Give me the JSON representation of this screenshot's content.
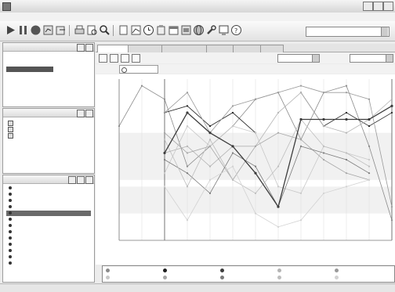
{
  "window": {
    "title": ""
  },
  "menubar": {
    "items": [
      "",
      "",
      "",
      "",
      "",
      "",
      "",
      "",
      ""
    ]
  },
  "toolbar": {
    "project_label": "",
    "project_value": ""
  },
  "websites_pane": {
    "title": "",
    "items": []
  },
  "search_engines_pane": {
    "title": "",
    "items": [
      "",
      "",
      ""
    ]
  },
  "sites_pane": {
    "title": "",
    "items": [
      "",
      "",
      "",
      "",
      "",
      "",
      "",
      "",
      "",
      "",
      "",
      "",
      ""
    ],
    "selected_index": 4
  },
  "tabs": [
    "",
    "",
    "",
    "",
    "",
    ""
  ],
  "position_ranges": {
    "label": "",
    "value": ""
  },
  "date_range": {
    "label": "",
    "value": ""
  },
  "filter": {
    "label": "",
    "value": ""
  },
  "chart_data": {
    "type": "line",
    "title": "",
    "xlabel": "",
    "ylabel": "",
    "x": [
      "",
      "",
      "",
      "",
      "",
      "",
      "",
      "",
      "",
      "",
      "",
      "",
      ""
    ],
    "y_ticks": [
      "",
      "",
      "",
      "",
      "",
      "",
      "",
      "",
      "",
      "",
      "",
      "",
      ""
    ],
    "ylim": [
      1,
      25
    ],
    "y_inverted": true,
    "highlight_series": 2,
    "series": [
      {
        "name": "",
        "color": "#8a8a8a",
        "values": [
          8,
          2,
          4,
          14,
          11,
          8,
          4,
          3,
          10,
          3,
          2,
          11,
          22
        ]
      },
      {
        "name": "",
        "color": "#1f1f1f",
        "values": [
          null,
          null,
          6,
          5,
          8,
          6,
          9,
          null,
          3,
          8,
          6,
          8,
          6
        ]
      },
      {
        "name": "",
        "color": "#3c3c3c",
        "values": [
          null,
          null,
          12,
          6,
          9,
          11,
          15,
          20,
          7,
          7,
          7,
          7,
          5
        ]
      },
      {
        "name": "",
        "color": "#b4b4b4",
        "values": [
          null,
          null,
          12,
          11,
          14,
          11,
          11,
          6,
          3,
          8,
          9,
          7,
          4
        ]
      },
      {
        "name": "",
        "color": "#9a9a9a",
        "values": [
          null,
          null,
          6,
          3,
          9,
          5,
          4,
          3,
          2,
          3,
          3,
          4,
          20
        ]
      },
      {
        "name": "",
        "color": "#c8c8c8",
        "values": [
          null,
          null,
          15,
          8,
          11,
          8,
          9,
          17,
          18,
          11,
          12,
          13,
          null
        ]
      },
      {
        "name": "",
        "color": "#a6a6a6",
        "values": [
          null,
          null,
          9,
          12,
          11,
          16,
          11,
          9,
          10,
          13,
          15,
          16,
          null
        ]
      },
      {
        "name": "",
        "color": "#7a7a7a",
        "values": [
          null,
          null,
          13,
          15,
          18,
          12,
          14,
          20,
          11,
          12,
          13,
          15,
          null
        ]
      },
      {
        "name": "",
        "color": "#bdbdbd",
        "values": [
          null,
          null,
          10,
          17,
          10,
          16,
          18,
          14,
          7,
          11,
          12,
          14,
          null
        ]
      },
      {
        "name": "",
        "color": "#d2d2d2",
        "values": [
          null,
          null,
          17,
          22,
          16,
          14,
          21,
          23,
          22,
          18,
          17,
          16,
          null
        ]
      }
    ]
  },
  "status": {
    "text": ""
  }
}
